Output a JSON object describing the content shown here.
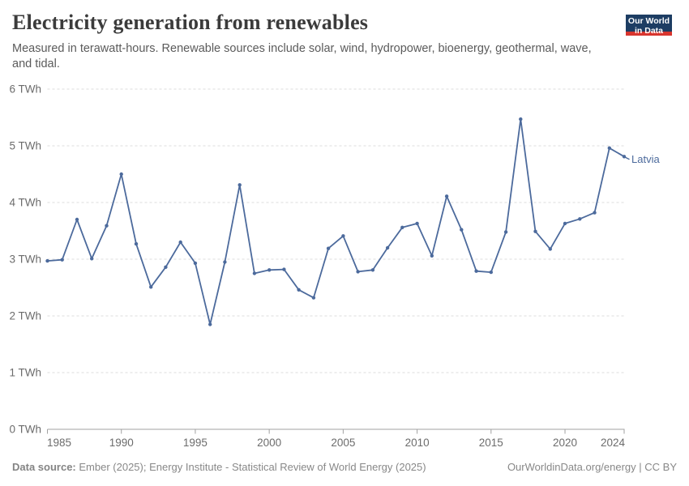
{
  "header": {
    "title": "Electricity generation from renewables",
    "subtitle": "Measured in terawatt-hours. Renewable sources include solar, wind, hydropower, bioenergy, geothermal, wave, and tidal.",
    "logo": {
      "line1": "Our World",
      "line2": "in Data"
    }
  },
  "chart_data": {
    "type": "line",
    "title": "Electricity generation from renewables",
    "unit": "TWh",
    "x": [
      1985,
      1986,
      1987,
      1988,
      1989,
      1990,
      1991,
      1992,
      1993,
      1994,
      1995,
      1996,
      1997,
      1998,
      1999,
      2000,
      2001,
      2002,
      2003,
      2004,
      2005,
      2006,
      2007,
      2008,
      2009,
      2010,
      2011,
      2012,
      2013,
      2014,
      2015,
      2016,
      2017,
      2018,
      2019,
      2020,
      2021,
      2022,
      2023,
      2024
    ],
    "series": [
      {
        "name": "Latvia",
        "values": [
          2.97,
          2.99,
          3.7,
          3.01,
          3.59,
          4.5,
          3.27,
          2.51,
          2.86,
          3.3,
          2.93,
          1.85,
          2.95,
          4.31,
          2.75,
          2.81,
          2.82,
          2.46,
          2.32,
          3.19,
          3.41,
          2.78,
          2.81,
          3.2,
          3.56,
          3.63,
          3.06,
          4.11,
          3.52,
          2.79,
          2.77,
          3.48,
          5.47,
          3.49,
          3.18,
          3.63,
          3.71,
          3.82,
          4.96,
          4.81
        ]
      }
    ],
    "end_label": "Latvia",
    "yticks": [
      0,
      1,
      2,
      3,
      4,
      5,
      6
    ],
    "ytick_suffix": " TWh",
    "xticks": [
      1985,
      1990,
      1995,
      2000,
      2005,
      2010,
      2015,
      2020,
      2024
    ],
    "xlim": [
      1985,
      2024
    ],
    "ylim": [
      0,
      6
    ],
    "grid": "horizontal-dashed",
    "legend_position": "end-of-line"
  },
  "footer": {
    "source_label": "Data source:",
    "source_text": "Ember (2025); Energy Institute - Statistical Review of World Energy (2025)",
    "credit": "OurWorldinData.org/energy | CC BY"
  },
  "colors": {
    "line": "#4C6A9C",
    "grid": "#dcdcdc",
    "axis": "#a1a1a1",
    "tick_label": "#6c6c6c",
    "title": "#3b3b3b",
    "subtitle": "#5b5b5b",
    "footer_text": "#888888",
    "logo_bg": "#1d3d63",
    "logo_accent": "#d8352e",
    "background": "#ffffff"
  }
}
